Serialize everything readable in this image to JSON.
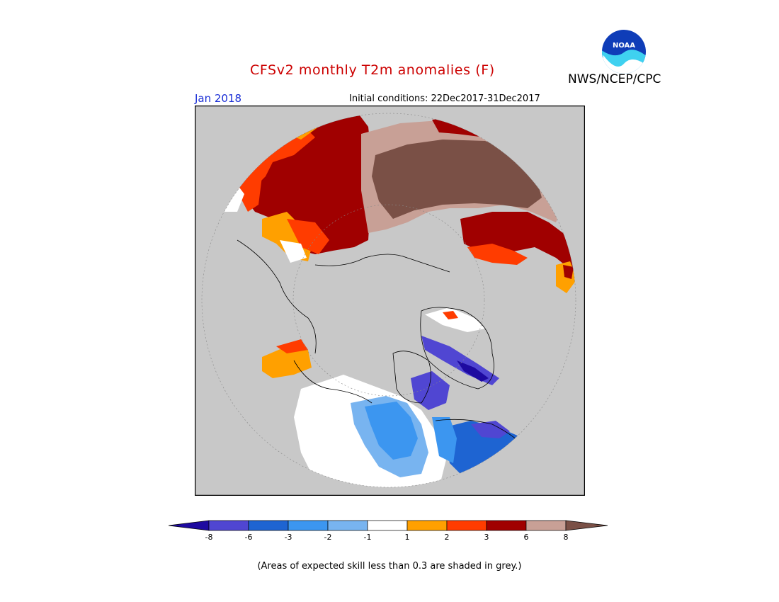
{
  "header": {
    "title": "CFSv2 monthly T2m anomalies (F)",
    "agency": "NWS/NCEP/CPC",
    "month": "Jan 2018",
    "initial_conditions": "Initial conditions: 22Dec2017-31Dec2017"
  },
  "logo": {
    "text": "NOAA",
    "icon": "noaa-logo-icon"
  },
  "map": {
    "projection": "north-polar-stereographic",
    "land_color": "#c8c8c8",
    "skill_mask_color": "#c8c8c8"
  },
  "colorbar": {
    "labels": [
      "-8",
      "-6",
      "-3",
      "-2",
      "-1",
      "1",
      "2",
      "3",
      "6",
      "8"
    ],
    "colors": [
      "#1e0aa0",
      "#5046d2",
      "#1e64d2",
      "#3c96f0",
      "#78b4f0",
      "#ffffff",
      "#ffa000",
      "#ff3c00",
      "#a00000",
      "#c8a096",
      "#7a5046"
    ]
  },
  "footnote": "(Areas of expected skill less than 0.3 are shaded in grey.)"
}
